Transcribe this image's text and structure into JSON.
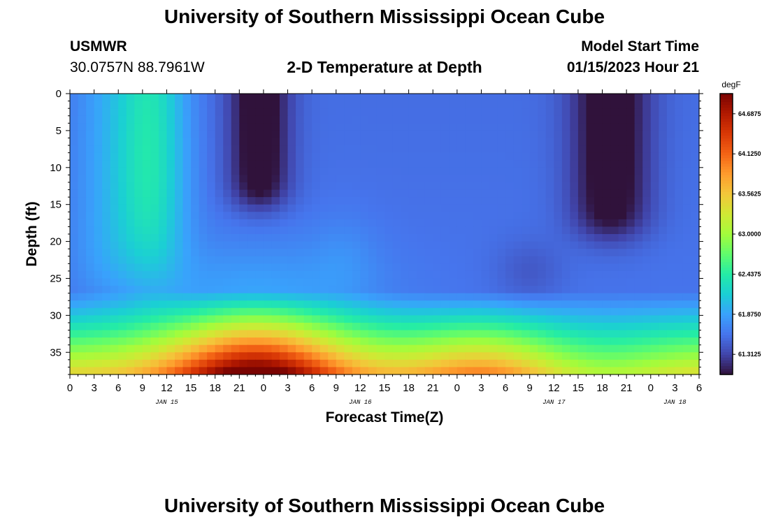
{
  "header": {
    "title": "University of Southern Mississippi Ocean Cube",
    "station": "USMWR",
    "coordinates": "30.0757N  88.7961W",
    "subtitle": "2-D Temperature at Depth",
    "model_start_label": "Model Start Time",
    "model_start_value": "01/15/2023 Hour 21"
  },
  "footer": {
    "title": "University of Southern Mississippi Ocean Cube"
  },
  "chart_data": {
    "type": "heatmap",
    "title": "2-D Temperature at Depth",
    "xlabel": "Forecast Time(Z)",
    "ylabel": "Depth (ft)",
    "x_unit": "hours since 0Z Jan 15",
    "x_range": [
      0,
      78
    ],
    "y_range": [
      0,
      38
    ],
    "y_reversed": true,
    "x_tick_labels": [
      "0",
      "3",
      "6",
      "9",
      "12",
      "15",
      "18",
      "21",
      "0",
      "3",
      "6",
      "9",
      "12",
      "15",
      "18",
      "21",
      "0",
      "3",
      "6",
      "9",
      "12",
      "15",
      "18",
      "21",
      "0",
      "3",
      "6"
    ],
    "day_labels": [
      {
        "text": "JAN 15",
        "hour": 12
      },
      {
        "text": "JAN 16",
        "hour": 36
      },
      {
        "text": "JAN 17",
        "hour": 60
      },
      {
        "text": "JAN 18",
        "hour": 75
      }
    ],
    "y_ticks": [
      0,
      5,
      10,
      15,
      20,
      25,
      30,
      35
    ],
    "colorbar": {
      "unit": "degF",
      "min": 61.03,
      "max": 64.97,
      "tick_labels": [
        "64.6875",
        "64.1250",
        "63.5625",
        "63.0000",
        "62.4375",
        "61.8750",
        "61.3125"
      ],
      "tick_values": [
        64.6875,
        64.125,
        63.5625,
        63.0,
        62.4375,
        61.875,
        61.3125
      ],
      "colormap": [
        "#30123b",
        "#4145ab",
        "#4675ed",
        "#39a2fc",
        "#1bcfd4",
        "#24eca6",
        "#61fc6c",
        "#a4fc3b",
        "#d1e834",
        "#f3c63a",
        "#fe9b2d",
        "#f36315",
        "#d93806",
        "#b11901",
        "#7a0402"
      ]
    },
    "field": {
      "base_surface_degF": 61.55,
      "base_deep_degF": 61.6,
      "features": [
        {
          "kind": "warm column",
          "hour_center": 10,
          "depth_top": 0,
          "depth_bottom": 24,
          "peak_degF": 62.35
        },
        {
          "kind": "cold plume",
          "hour_center": 23.5,
          "depth_bottom": 15,
          "min_degF": 61.05
        },
        {
          "kind": "cold plume",
          "hour_center": 67,
          "depth_bottom": 19,
          "min_degF": 61.05
        },
        {
          "kind": "bottom warm layer",
          "depth_top": 27,
          "depth_bottom": 38,
          "peak_hour": 23,
          "peak_degF": 64.95
        },
        {
          "kind": "bottom warm layer secondary",
          "peak_hour": 51,
          "peak_degF": 64.6
        }
      ]
    }
  }
}
